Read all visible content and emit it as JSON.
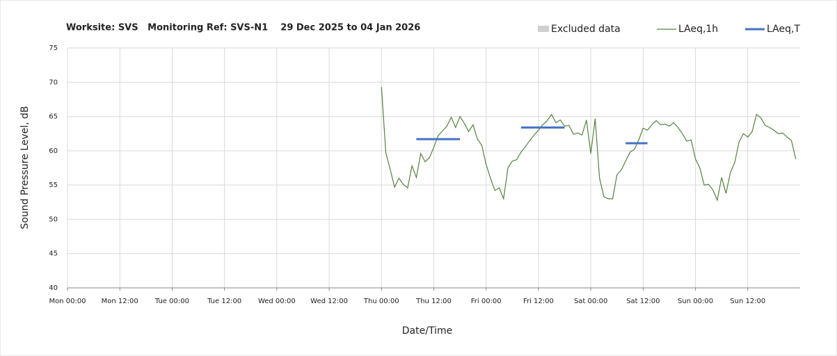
{
  "chart_data": {
    "type": "line",
    "title": "Worksite: SVS   Monitoring Ref: SVS-N1    29 Dec 2025 to 04 Jan 2026",
    "xlabel": "Date/Time",
    "ylabel": "Sound Pressure Level, dB",
    "xlim": [
      0,
      168
    ],
    "xticks": [
      {
        "value": 0,
        "label": "Mon 00:00"
      },
      {
        "value": 12,
        "label": "Mon 12:00"
      },
      {
        "value": 24,
        "label": "Tue 00:00"
      },
      {
        "value": 36,
        "label": "Tue 12:00"
      },
      {
        "value": 48,
        "label": "Wed 00:00"
      },
      {
        "value": 60,
        "label": "Wed 12:00"
      },
      {
        "value": 72,
        "label": "Thu 00:00"
      },
      {
        "value": 84,
        "label": "Thu 12:00"
      },
      {
        "value": 96,
        "label": "Fri 00:00"
      },
      {
        "value": 108,
        "label": "Fri 12:00"
      },
      {
        "value": 120,
        "label": "Sat 00:00"
      },
      {
        "value": 132,
        "label": "Sat 12:00"
      },
      {
        "value": 144,
        "label": "Sun 00:00"
      },
      {
        "value": 156,
        "label": "Sun 12:00"
      }
    ],
    "ylim": [
      40,
      75
    ],
    "yticks": [
      40,
      45,
      50,
      55,
      60,
      65,
      70,
      75
    ],
    "grid": true,
    "legend": "top-right",
    "series": [
      {
        "name": "Excluded data",
        "color": "#d0d0d0",
        "kind": "area"
      },
      {
        "name": "LAeq,1h",
        "color": "#56803f",
        "kind": "line",
        "x": [
          72,
          73,
          74,
          75,
          76,
          77,
          78,
          79,
          80,
          81,
          82,
          83,
          84,
          85,
          86,
          87,
          88,
          89,
          90,
          91,
          92,
          93,
          94,
          95,
          96,
          97,
          98,
          99,
          100,
          101,
          102,
          103,
          104,
          105,
          106,
          107,
          108,
          109,
          110,
          111,
          112,
          113,
          114,
          115,
          116,
          117,
          118,
          119,
          120,
          121,
          122,
          123,
          124,
          125,
          126,
          127,
          128,
          129,
          130,
          131,
          132,
          133,
          134,
          135,
          136,
          137,
          138,
          139,
          140,
          141,
          142,
          143,
          144,
          145,
          146,
          147,
          148,
          149,
          150,
          151,
          152,
          153,
          154,
          155,
          156,
          157,
          158,
          159,
          160,
          161,
          162,
          163,
          164,
          165,
          166,
          167
        ],
        "values": [
          69.3,
          59.7,
          57.3,
          54.7,
          56.0,
          55.1,
          54.6,
          57.8,
          56.1,
          59.6,
          58.4,
          59.0,
          60.5,
          62.2,
          62.9,
          63.6,
          64.9,
          63.4,
          65.0,
          64.0,
          62.8,
          63.8,
          61.7,
          60.8,
          58.0,
          56.0,
          54.2,
          54.6,
          53.0,
          57.5,
          58.5,
          58.7,
          59.8,
          60.6,
          61.5,
          62.3,
          63.0,
          63.8,
          64.4,
          65.3,
          64.1,
          64.5,
          63.6,
          63.7,
          62.4,
          62.6,
          62.3,
          64.5,
          59.6,
          64.7,
          56.0,
          53.3,
          53.0,
          53.0,
          56.5,
          57.2,
          58.5,
          59.8,
          60.2,
          61.6,
          63.3,
          63.0,
          63.8,
          64.4,
          63.8,
          63.9,
          63.6,
          64.1,
          63.4,
          62.5,
          61.4,
          61.6,
          58.8,
          57.5,
          55.0,
          55.1,
          54.3,
          52.8,
          56.1,
          53.8,
          56.8,
          58.3,
          61.3,
          62.5,
          62.0,
          62.8,
          65.3,
          64.8,
          63.7,
          63.4,
          63.0,
          62.5,
          62.6,
          62.0,
          61.5,
          58.8
        ]
      },
      {
        "name": "LAeq,T",
        "color": "#4472c4",
        "kind": "segments",
        "segments": [
          {
            "start": 80,
            "end": 90,
            "value": 61.7
          },
          {
            "start": 104,
            "end": 114,
            "value": 63.4
          },
          {
            "start": 128,
            "end": 133,
            "value": 61.1
          }
        ]
      }
    ]
  }
}
